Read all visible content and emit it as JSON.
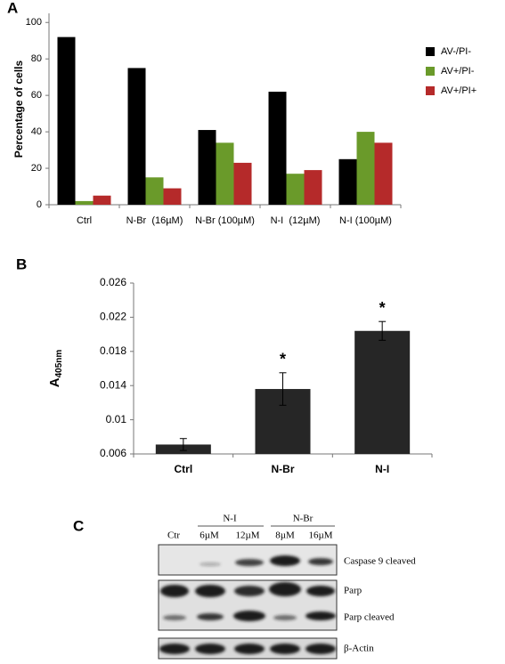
{
  "chart_data": [
    {
      "type": "bar",
      "panel": "A",
      "ylabel": "Percentage of cells",
      "categories": [
        "Ctrl",
        "N-Br  (16µM)",
        "N-Br (100µM)",
        "N-I  (12µM)",
        "N-I (100µM)"
      ],
      "series": [
        {
          "name": "AV-/PI-",
          "color": "#000000",
          "values": [
            92,
            75,
            41,
            62,
            25
          ]
        },
        {
          "name": "AV+/PI-",
          "color": "#6a9a2a",
          "values": [
            2,
            15,
            34,
            17,
            40
          ]
        },
        {
          "name": "AV+/PI+",
          "color": "#b52a2a",
          "values": [
            5,
            9,
            23,
            19,
            34
          ]
        }
      ],
      "ylim": [
        0,
        105
      ],
      "yticks": [
        0,
        20,
        40,
        60,
        80,
        100
      ],
      "legend": "right"
    },
    {
      "type": "bar",
      "panel": "B",
      "ylabel": "A",
      "ylabel_sub": "405nm",
      "categories": [
        "Ctrl",
        "N-Br",
        "N-I"
      ],
      "values": [
        0.0071,
        0.0136,
        0.0204
      ],
      "errors": [
        0.0007,
        0.0019,
        0.0011
      ],
      "significance": [
        null,
        "*",
        "*"
      ],
      "color": "#262626",
      "ylim": [
        0.006,
        0.026
      ],
      "yticks": [
        0.006,
        0.01,
        0.014,
        0.018,
        0.022,
        0.026
      ]
    }
  ],
  "blot": {
    "panel": "C",
    "lanes": [
      "Ctr",
      "6µM",
      "12µM",
      "8µM",
      "16µM"
    ],
    "groups": [
      "N-I",
      "N-Br"
    ],
    "rows": [
      "Caspase 9 cleaved",
      "Parp",
      "Parp cleaved",
      "β-Actin"
    ]
  }
}
